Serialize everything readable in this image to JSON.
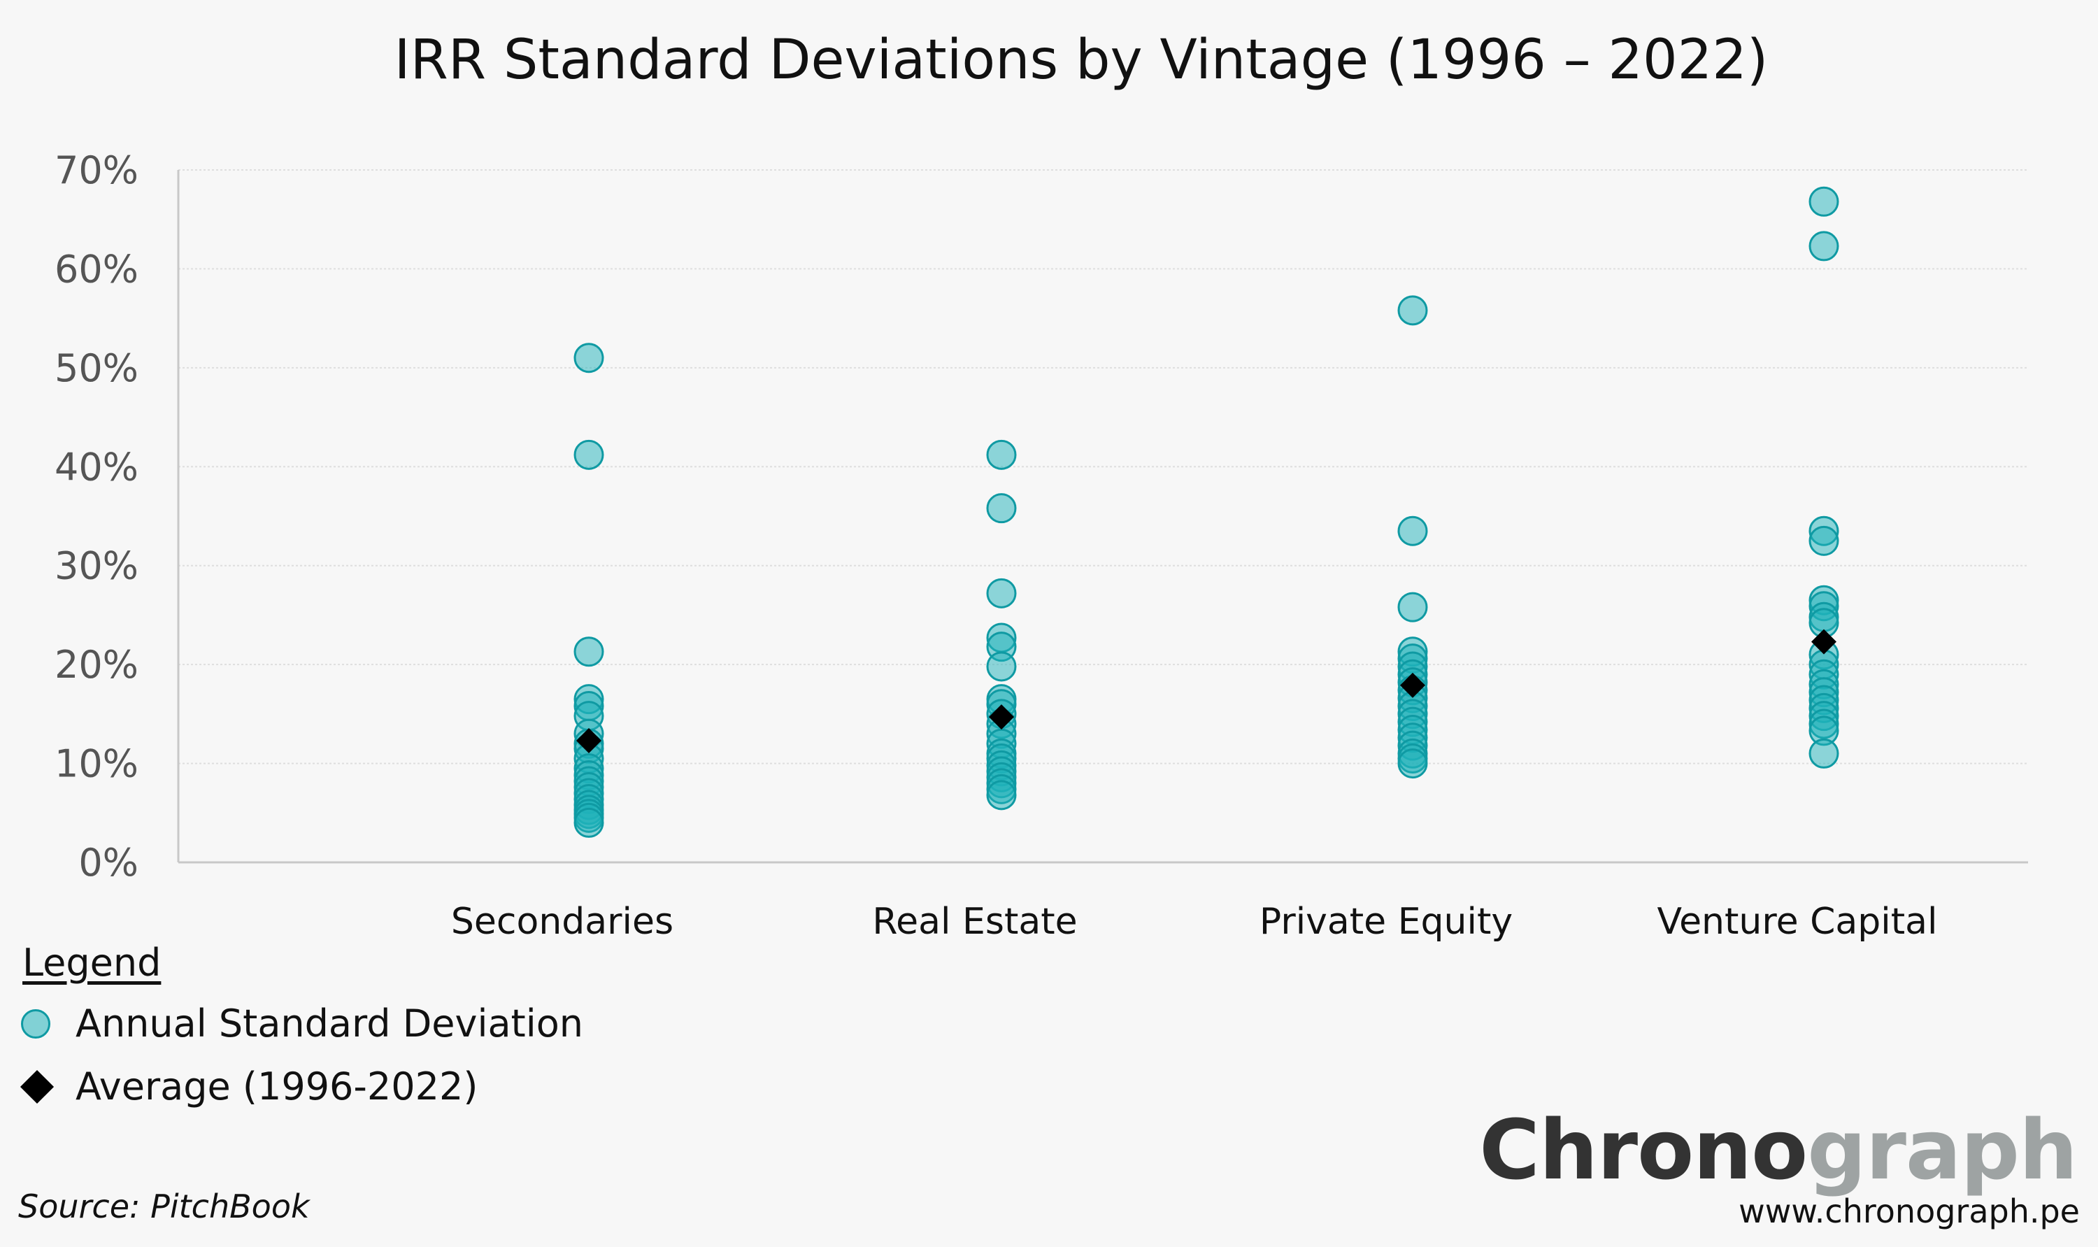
{
  "chart_data": {
    "type": "scatter",
    "title": "IRR Standard Deviations by Vintage (1996 – 2022)",
    "xlabel": "",
    "ylabel": "",
    "categories": [
      "Secondaries",
      "Real Estate",
      "Private Equity",
      "Venture Capital"
    ],
    "ylim": [
      0,
      70
    ],
    "yticks": [
      "0%",
      "10%",
      "20%",
      "30%",
      "40%",
      "50%",
      "60%",
      "70%"
    ],
    "grid": true,
    "series": [
      {
        "name": "Annual Standard Deviation",
        "marker": "circle",
        "color": "#20b2ba",
        "values": [
          [
            51,
            41.2,
            21.3,
            16.5,
            15.8,
            14.8,
            13.0,
            12.0,
            11.5,
            10.5,
            9.5,
            8.8,
            8.2,
            7.6,
            7.0,
            6.4,
            5.8,
            5.3,
            4.9,
            4.5,
            4.0
          ],
          [
            41.2,
            35.8,
            27.2,
            22.7,
            21.8,
            19.8,
            16.5,
            16.0,
            15.0,
            14.0,
            13.0,
            12.0,
            11.0,
            10.5,
            9.8,
            9.2,
            8.6,
            8.0,
            7.4,
            6.8
          ],
          [
            55.8,
            33.5,
            25.8,
            21.3,
            20.6,
            19.8,
            19.0,
            18.2,
            17.4,
            16.6,
            15.8,
            15.0,
            14.2,
            13.4,
            12.6,
            11.8,
            11.0,
            10.5,
            10.0
          ],
          [
            66.8,
            62.3,
            33.5,
            32.5,
            26.5,
            25.9,
            24.8,
            24.2,
            21.0,
            20.0,
            19.0,
            18.0,
            17.2,
            16.4,
            15.6,
            14.8,
            14.0,
            13.3,
            11.0
          ]
        ]
      },
      {
        "name": "Average (1996-2022)",
        "marker": "diamond",
        "color": "#000000",
        "values": [
          12.3,
          14.7,
          17.9,
          22.3
        ]
      }
    ]
  },
  "legend": {
    "title": "Legend",
    "items": [
      "Annual Standard Deviation",
      "Average (1996-2022)"
    ]
  },
  "source": "Source: PitchBook",
  "brand": {
    "part1": "Chrono",
    "part2": "graph"
  },
  "website": "www.chronograph.pe"
}
